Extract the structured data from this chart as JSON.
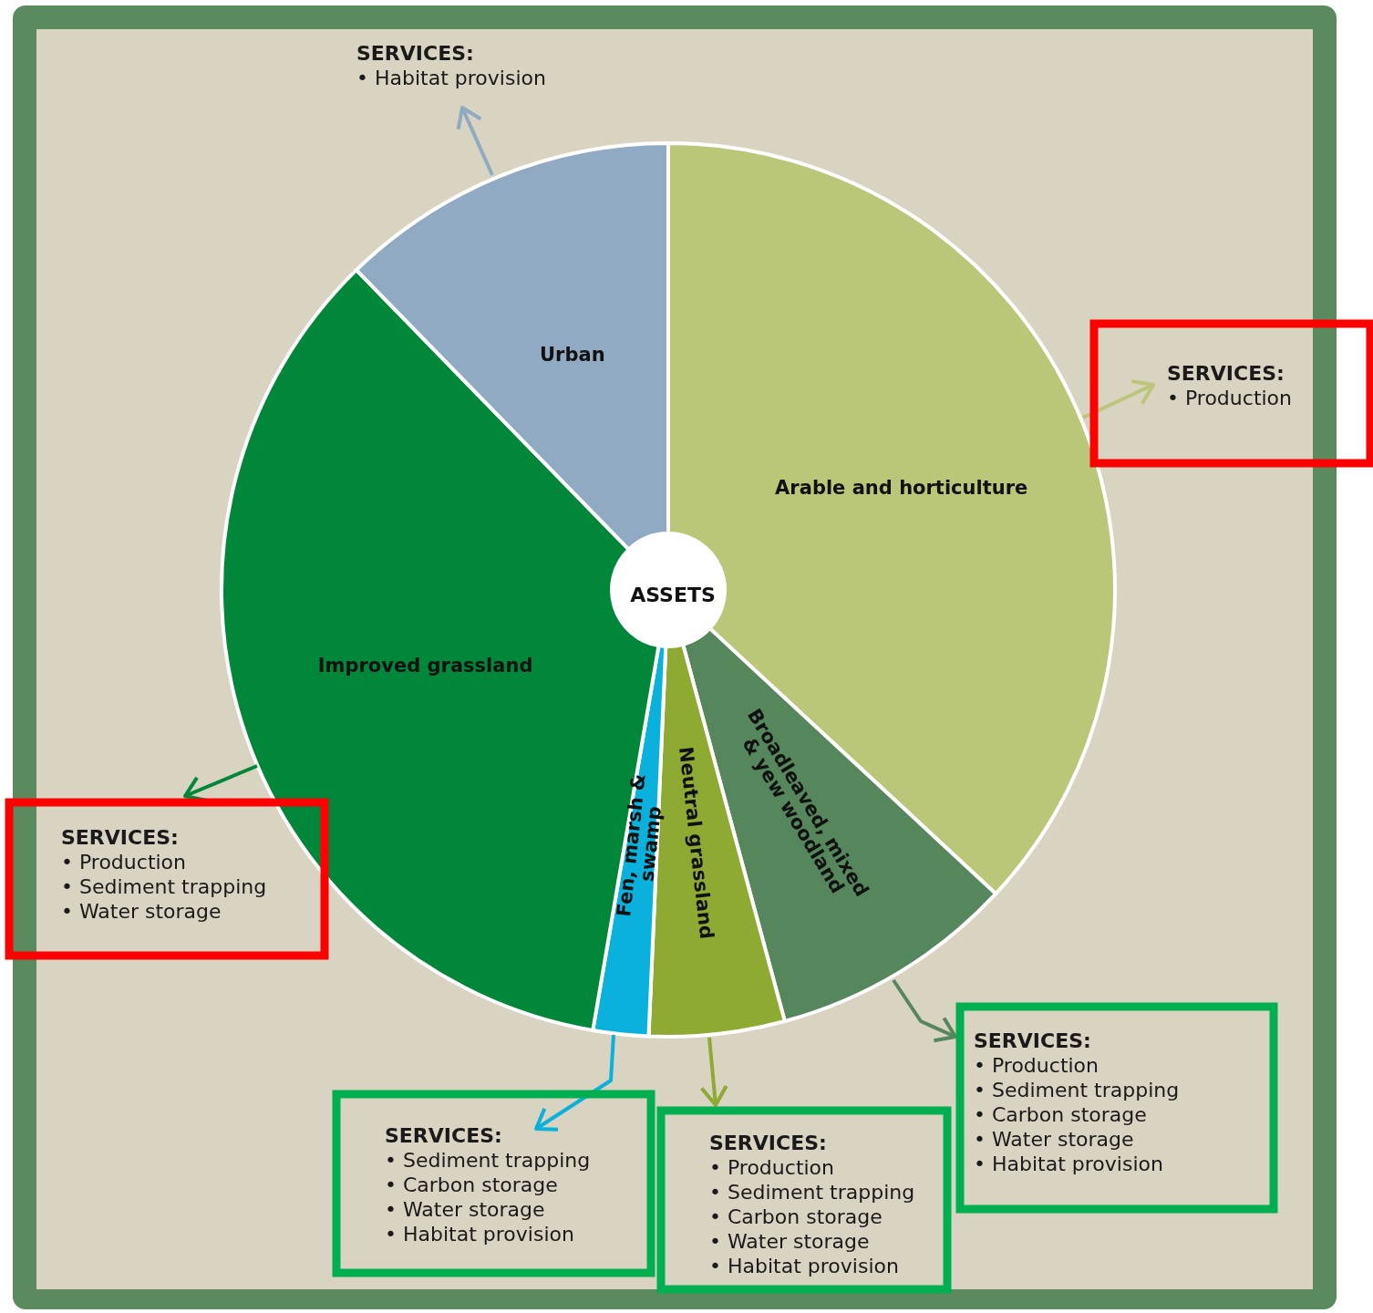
{
  "chart_data": {
    "type": "donut",
    "title": "ASSETS",
    "categories": [
      "Arable and horticulture",
      "Broadleaved, mixed & yew woodland",
      "Neutral grassland",
      "Fen, marsh & swamp",
      "Improved grassland",
      "Urban"
    ],
    "values": [
      36.9,
      8.9,
      4.9,
      2.0,
      35.0,
      12.3
    ],
    "colors": [
      "#bac778",
      "#56875c",
      "#8faa33",
      "#0ab1dc",
      "#00873a",
      "#91aac4"
    ],
    "legend": false,
    "annotations": [
      "SERVICES:\n• Habitat provision",
      "SERVICES:\n• Production",
      "SERVICES:\n• Production\n• Sediment trapping\n• Water storage",
      "SERVICES:\n• Sediment trapping\n• Carbon storage\n• Water storage\n• Habitat provision",
      "SERVICES:\n• Production\n• Sediment trapping\n• Carbon storage\n• Water storage\n• Habitat provision",
      "SERVICES:\n• Production\n• Sediment trapping\n• Carbon storage\n• Water storage\n• Habitat provision"
    ]
  }
}
